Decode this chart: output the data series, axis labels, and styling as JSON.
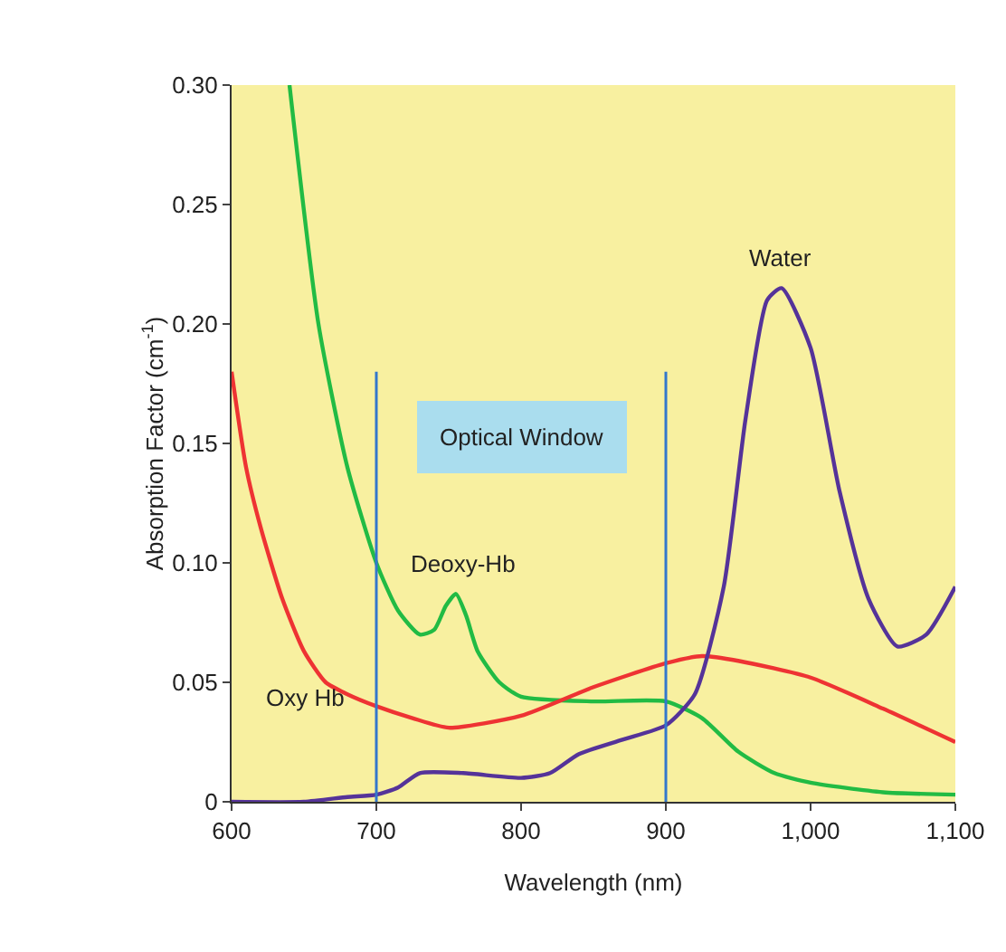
{
  "chart_data": {
    "type": "line",
    "xlabel": "Wavelength (nm)",
    "ylabel": "Absorption Factor (cm$^{-1}$)",
    "xlim": [
      600,
      1100
    ],
    "ylim": [
      0,
      0.3
    ],
    "xticks": [
      600,
      700,
      800,
      900,
      {
        "value": 1000,
        "label": "1,000"
      },
      {
        "value": 1100,
        "label": "1,100"
      }
    ],
    "yticks": [
      0,
      {
        "value": 0.05,
        "label": "0.05"
      },
      {
        "value": 0.1,
        "label": "0.10"
      },
      {
        "value": 0.15,
        "label": "0.15"
      },
      {
        "value": 0.2,
        "label": "0.20"
      },
      {
        "value": 0.25,
        "label": "0.25"
      },
      {
        "value": 0.3,
        "label": "0.30"
      }
    ],
    "grid": false,
    "marker": "none",
    "line_style": "solid",
    "series": [
      {
        "color": "#22bb44",
        "x": [
          640,
          660,
          680,
          700,
          715,
          730,
          740,
          748,
          755,
          762,
          770,
          785,
          800,
          850,
          900,
          925,
          950,
          975,
          1000,
          1050,
          1100
        ],
        "values": [
          0.3,
          0.2,
          0.14,
          0.1,
          0.08,
          0.07,
          0.072,
          0.082,
          0.087,
          0.078,
          0.063,
          0.05,
          0.044,
          0.042,
          0.042,
          0.035,
          0.021,
          0.012,
          0.008,
          0.004,
          0.003
        ]
      },
      {
        "color": "#ee3333",
        "x": [
          600,
          610,
          620,
          635,
          650,
          665,
          680,
          700,
          725,
          750,
          800,
          850,
          900,
          925,
          950,
          1000,
          1050,
          1100
        ],
        "values": [
          0.18,
          0.14,
          0.115,
          0.085,
          0.063,
          0.05,
          0.045,
          0.04,
          0.035,
          0.031,
          0.036,
          0.048,
          0.058,
          0.061,
          0.059,
          0.052,
          0.039,
          0.025
        ]
      },
      {
        "color": "#553399",
        "x": [
          600,
          650,
          680,
          700,
          715,
          730,
          760,
          800,
          820,
          840,
          870,
          900,
          920,
          940,
          955,
          970,
          980,
          1000,
          1020,
          1040,
          1060,
          1080,
          1100
        ],
        "values": [
          0,
          0,
          0.002,
          0.003,
          0.006,
          0.012,
          0.012,
          0.01,
          0.012,
          0.02,
          0.026,
          0.032,
          0.045,
          0.09,
          0.16,
          0.21,
          0.215,
          0.19,
          0.13,
          0.085,
          0.065,
          0.07,
          0.09
        ]
      }
    ],
    "ref_lines": [
      {
        "axis": "x",
        "value": 700,
        "color": "#3377cc"
      },
      {
        "axis": "x",
        "value": 900,
        "color": "#3377cc"
      }
    ],
    "annotations": [
      "Water",
      "Deoxy-Hb",
      "Oxy Hb",
      "Optical Window"
    ]
  }
}
